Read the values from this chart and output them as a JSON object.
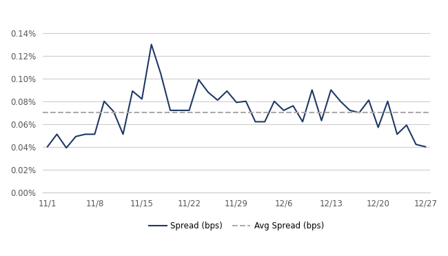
{
  "x_labels": [
    "11/1",
    "11/8",
    "11/15",
    "11/22",
    "11/29",
    "12/6",
    "12/13",
    "12/20",
    "12/27"
  ],
  "x_positions": [
    0,
    5,
    10,
    15,
    20,
    25,
    30,
    35,
    40
  ],
  "spread_x": [
    0,
    1,
    2,
    3,
    4,
    5,
    6,
    7,
    8,
    9,
    10,
    11,
    12,
    13,
    14,
    15,
    16,
    17,
    18,
    19,
    20,
    21,
    22,
    23,
    24,
    25,
    26,
    27,
    28,
    29,
    30,
    31,
    32,
    33,
    34,
    35,
    36,
    37,
    38,
    39,
    40
  ],
  "spread_y": [
    0.0004,
    0.00051,
    0.00039,
    0.00049,
    0.00051,
    0.00051,
    0.0008,
    0.00071,
    0.00051,
    0.00089,
    0.00082,
    0.0013,
    0.00104,
    0.00072,
    0.00072,
    0.00072,
    0.00099,
    0.00088,
    0.00081,
    0.00089,
    0.00079,
    0.0008,
    0.00062,
    0.00062,
    0.0008,
    0.00072,
    0.00076,
    0.00062,
    0.0009,
    0.00063,
    0.0009,
    0.0008,
    0.00072,
    0.0007,
    0.00081,
    0.00057,
    0.0008,
    0.00051,
    0.00059,
    0.00042,
    0.0004
  ],
  "avg_spread": 0.0007,
  "line_color": "#1F3864",
  "avg_color": "#aaaaaa",
  "background_color": "#ffffff",
  "grid_color": "#cccccc",
  "ylim_min": 0.0,
  "ylim_max": 0.0016,
  "yticks": [
    0.0,
    0.0002,
    0.0004,
    0.0006,
    0.0008,
    0.001,
    0.0012,
    0.0014
  ],
  "ytick_labels": [
    "0.00%",
    "0.02%",
    "0.04%",
    "0.06%",
    "0.08%",
    "0.10%",
    "0.12%",
    "0.14%"
  ],
  "legend_spread_label": "Spread (bps)",
  "legend_avg_label": "Avg Spread (bps)"
}
